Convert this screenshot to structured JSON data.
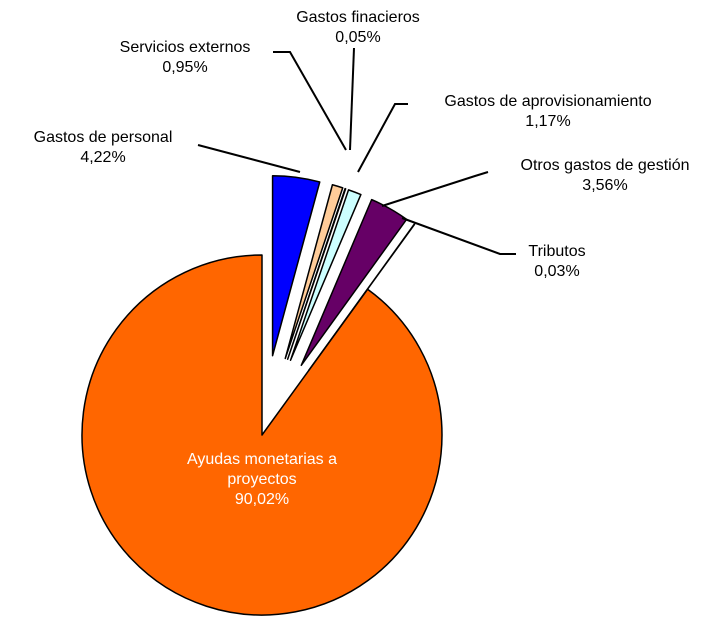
{
  "chart_data": {
    "type": "pie",
    "categories": [
      "Gastos de personal",
      "Servicios externos",
      "Gastos finacieros",
      "Gastos de aprovisionamiento",
      "Otros gastos de gestión",
      "Tributos",
      "Ayudas monetarias a proyectos"
    ],
    "values": [
      4.22,
      0.95,
      0.05,
      1.17,
      3.56,
      0.03,
      90.02
    ],
    "value_labels": [
      "4,22%",
      "0,95%",
      "0,05%",
      "1,17%",
      "3,56%",
      "0,03%",
      "90,02%"
    ],
    "colors": [
      "#0000ff",
      "#ffcc99",
      "#993366",
      "#ccffff",
      "#660066",
      "#ff8080",
      "#ff6600"
    ]
  }
}
